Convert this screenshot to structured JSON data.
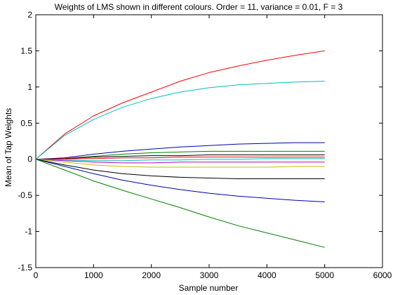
{
  "chart_data": {
    "type": "line",
    "title": "Weights of LMS shown in different colours. Order = 11, variance = 0.01, F = 3",
    "xlabel": "Sample number",
    "ylabel": "Mean of Tap Weights",
    "xlim": [
      0,
      6000
    ],
    "ylim": [
      -1.5,
      2
    ],
    "xticks": [
      0,
      1000,
      2000,
      3000,
      4000,
      5000,
      6000
    ],
    "yticks": [
      -1.5,
      -1,
      -0.5,
      0,
      0.5,
      1,
      1.5,
      2
    ],
    "xtick_labels": [
      "0",
      "1000",
      "2000",
      "3000",
      "4000",
      "5000",
      "6000"
    ],
    "ytick_labels": [
      "-1.5",
      "-1",
      "-0.5",
      "0",
      "0.5",
      "1",
      "1.5",
      "2"
    ],
    "grid": false,
    "legend": "none",
    "series": [
      {
        "color": "#ff0000",
        "x": [
          0,
          500,
          1000,
          1500,
          2000,
          2500,
          3000,
          3500,
          4000,
          4500,
          5000
        ],
        "values": [
          0,
          0.35,
          0.6,
          0.78,
          0.93,
          1.08,
          1.2,
          1.29,
          1.37,
          1.44,
          1.5
        ]
      },
      {
        "color": "#00bfbf",
        "x": [
          0,
          500,
          1000,
          1500,
          2000,
          2500,
          3000,
          3500,
          4000,
          4500,
          5000
        ],
        "values": [
          0,
          0.33,
          0.55,
          0.72,
          0.84,
          0.93,
          0.99,
          1.03,
          1.05,
          1.07,
          1.08
        ]
      },
      {
        "color": "#0000aa",
        "x": [
          0,
          500,
          1000,
          1500,
          2000,
          2500,
          3000,
          3500,
          4000,
          4500,
          5000
        ],
        "values": [
          0,
          0.02,
          0.07,
          0.11,
          0.14,
          0.17,
          0.19,
          0.21,
          0.22,
          0.23,
          0.23
        ]
      },
      {
        "color": "#007f00",
        "x": [
          0,
          500,
          1000,
          1500,
          2000,
          2500,
          3000,
          3500,
          4000,
          4500,
          5000
        ],
        "values": [
          0,
          0.01,
          0.04,
          0.07,
          0.09,
          0.1,
          0.11,
          0.11,
          0.11,
          0.11,
          0.11
        ]
      },
      {
        "color": "#000000",
        "x": [
          0,
          500,
          1000,
          1500,
          2000,
          2500,
          3000,
          3500,
          4000,
          4500,
          5000
        ],
        "values": [
          0,
          0.01,
          0.03,
          0.04,
          0.05,
          0.05,
          0.06,
          0.06,
          0.06,
          0.06,
          0.06
        ]
      },
      {
        "color": "#ff0000",
        "x": [
          0,
          500,
          1000,
          1500,
          2000,
          2500,
          3000,
          3500,
          4000,
          4500,
          5000
        ],
        "values": [
          0,
          0.005,
          0.01,
          0.02,
          0.02,
          0.03,
          0.03,
          0.03,
          0.03,
          0.03,
          0.03
        ]
      },
      {
        "color": "#00bfbf",
        "x": [
          0,
          500,
          1000,
          1500,
          2000,
          2500,
          3000,
          3500,
          4000,
          4500,
          5000
        ],
        "values": [
          0,
          -0.01,
          -0.02,
          -0.02,
          -0.01,
          -0.01,
          0,
          0,
          0.01,
          0.01,
          0.01
        ]
      },
      {
        "color": "#bf00bf",
        "x": [
          0,
          500,
          1000,
          1500,
          2000,
          2500,
          3000,
          3500,
          4000,
          4500,
          5000
        ],
        "values": [
          0,
          -0.02,
          -0.04,
          -0.05,
          -0.05,
          -0.04,
          -0.04,
          -0.04,
          -0.04,
          -0.04,
          -0.04
        ]
      },
      {
        "color": "#bfbf00",
        "x": [
          0,
          500,
          1000,
          1500,
          2000,
          2500,
          3000,
          3500,
          4000,
          4500,
          5000
        ],
        "values": [
          0,
          -0.04,
          -0.08,
          -0.1,
          -0.11,
          -0.11,
          -0.11,
          -0.11,
          -0.11,
          -0.1,
          -0.1
        ]
      },
      {
        "color": "#000000",
        "x": [
          0,
          500,
          1000,
          1500,
          2000,
          2500,
          3000,
          3500,
          4000,
          4500,
          5000
        ],
        "values": [
          0,
          -0.08,
          -0.15,
          -0.2,
          -0.23,
          -0.25,
          -0.26,
          -0.27,
          -0.27,
          -0.27,
          -0.27
        ]
      },
      {
        "color": "#0000aa",
        "x": [
          0,
          500,
          1000,
          1500,
          2000,
          2500,
          3000,
          3500,
          4000,
          4500,
          5000
        ],
        "values": [
          0,
          -0.1,
          -0.2,
          -0.29,
          -0.36,
          -0.42,
          -0.47,
          -0.51,
          -0.54,
          -0.57,
          -0.59
        ]
      },
      {
        "color": "#007f00",
        "x": [
          0,
          500,
          1000,
          1500,
          2000,
          2500,
          3000,
          3500,
          4000,
          4500,
          5000
        ],
        "values": [
          0,
          -0.15,
          -0.3,
          -0.43,
          -0.55,
          -0.67,
          -0.8,
          -0.92,
          -1.02,
          -1.12,
          -1.22
        ]
      }
    ]
  }
}
